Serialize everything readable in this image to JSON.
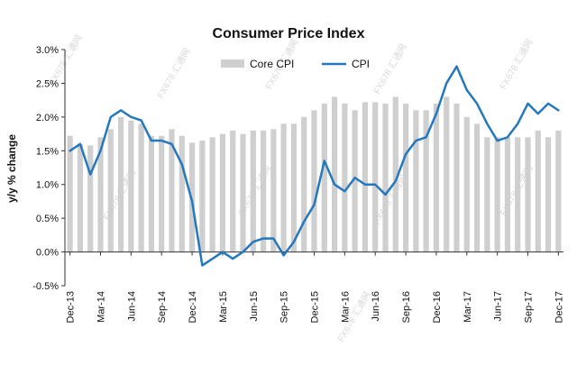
{
  "chart_data": {
    "type": "bar+line",
    "title": "Consumer  Price Index",
    "ylabel": "y/y % change",
    "ylim": [
      -0.5,
      3.0
    ],
    "yticks": [
      -0.5,
      0.0,
      0.5,
      1.0,
      1.5,
      2.0,
      2.5,
      3.0
    ],
    "ytick_labels": [
      "-0.5%",
      "0.0%",
      "0.5%",
      "1.0%",
      "1.5%",
      "2.0%",
      "2.5%",
      "3.0%"
    ],
    "x": [
      "Dec-13",
      "Jan-14",
      "Feb-14",
      "Mar-14",
      "Apr-14",
      "May-14",
      "Jun-14",
      "Jul-14",
      "Aug-14",
      "Sep-14",
      "Oct-14",
      "Nov-14",
      "Dec-14",
      "Jan-15",
      "Feb-15",
      "Mar-15",
      "Apr-15",
      "May-15",
      "Jun-15",
      "Jul-15",
      "Aug-15",
      "Sep-15",
      "Oct-15",
      "Nov-15",
      "Dec-15",
      "Jan-16",
      "Feb-16",
      "Mar-16",
      "Apr-16",
      "May-16",
      "Jun-16",
      "Jul-16",
      "Aug-16",
      "Sep-16",
      "Oct-16",
      "Nov-16",
      "Dec-16",
      "Jan-17",
      "Feb-17",
      "Mar-17",
      "Apr-17",
      "May-17",
      "Jun-17",
      "Jul-17",
      "Aug-17",
      "Sep-17",
      "Oct-17",
      "Nov-17",
      "Dec-17"
    ],
    "tick_labels": [
      "Dec-13",
      "Mar-14",
      "Jun-14",
      "Sep-14",
      "Dec-14",
      "Mar-15",
      "Jun-15",
      "Sep-15",
      "Dec-15",
      "Mar-16",
      "Jun-16",
      "Sep-16",
      "Dec-16",
      "Mar-17",
      "Jun-17",
      "Sep-17",
      "Dec-17"
    ],
    "grid": false,
    "legend_position": "top-center",
    "series": [
      {
        "name": "Core CPI",
        "type": "bar",
        "color": "#cfcfcf",
        "values": [
          1.72,
          1.6,
          1.58,
          1.7,
          1.82,
          2.0,
          1.95,
          1.9,
          1.72,
          1.72,
          1.82,
          1.72,
          1.62,
          1.65,
          1.7,
          1.75,
          1.8,
          1.75,
          1.8,
          1.8,
          1.82,
          1.9,
          1.9,
          2.0,
          2.1,
          2.2,
          2.3,
          2.2,
          2.1,
          2.22,
          2.22,
          2.2,
          2.3,
          2.2,
          2.1,
          2.1,
          2.2,
          2.3,
          2.2,
          2.0,
          1.9,
          1.7,
          1.7,
          1.7,
          1.7,
          1.7,
          1.8,
          1.7,
          1.8
        ]
      },
      {
        "name": "CPI",
        "type": "line",
        "color": "#2478be",
        "values": [
          1.5,
          1.6,
          1.15,
          1.5,
          2.0,
          2.1,
          2.0,
          1.95,
          1.65,
          1.65,
          1.6,
          1.3,
          0.75,
          -0.2,
          -0.1,
          0.0,
          -0.1,
          0.0,
          0.15,
          0.2,
          0.2,
          -0.05,
          0.15,
          0.45,
          0.7,
          1.35,
          1.0,
          0.9,
          1.1,
          1.0,
          1.0,
          0.85,
          1.05,
          1.45,
          1.65,
          1.7,
          2.05,
          2.5,
          2.75,
          2.4,
          2.2,
          1.9,
          1.65,
          1.7,
          1.9,
          2.2,
          2.05,
          2.2,
          2.1
        ]
      }
    ]
  },
  "watermarks": [
    "FX678 汇通网",
    "FX678 汇通网",
    "FX678 汇通网",
    "FX678 汇通网",
    "FX678 汇通网",
    "FX678 汇通网",
    "FX678 汇通网",
    "FX678 汇通网",
    "FX678 汇通网",
    "FX678 汇通网"
  ]
}
